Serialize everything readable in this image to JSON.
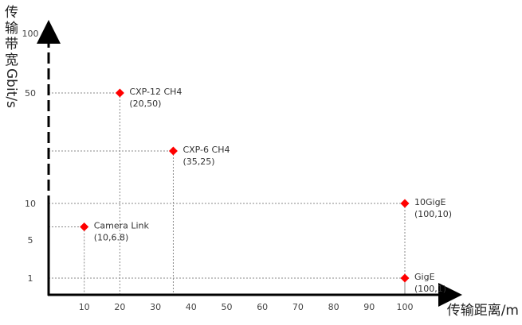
{
  "chart_data": {
    "type": "scatter",
    "xlabel": "传输距离/m",
    "ylabel": "传输带宽Gbit/s",
    "x_ticks": [
      10,
      20,
      30,
      40,
      50,
      60,
      70,
      80,
      90,
      100
    ],
    "y_ticks": [
      1,
      5,
      10,
      50,
      100
    ],
    "xlim": [
      0,
      110
    ],
    "grid": false,
    "marker_color": "#ff0000",
    "points": [
      {
        "name": "CXP-12 CH4",
        "coord": "(20,50)",
        "x": 20,
        "y": 50
      },
      {
        "name": "CXP-6 CH4",
        "coord": "(35,25)",
        "x": 35,
        "y": 25
      },
      {
        "name": "10GigE",
        "coord": "(100,10)",
        "x": 100,
        "y": 10
      },
      {
        "name": "Camera Link",
        "coord": "(10,6.8)",
        "x": 10,
        "y": 6.8
      },
      {
        "name": "GigE",
        "coord": "(100,1)",
        "x": 100,
        "y": 1
      }
    ]
  }
}
